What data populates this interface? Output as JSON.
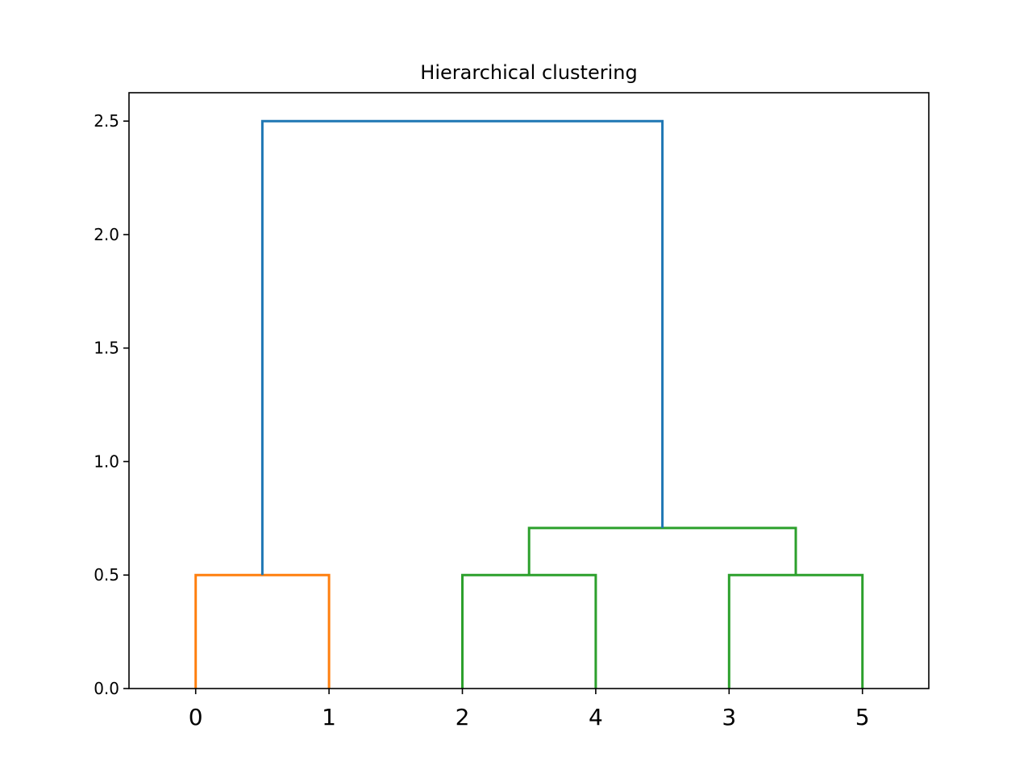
{
  "chart_data": {
    "type": "dendrogram",
    "title": "Hierarchical clustering",
    "xlabel": "",
    "ylabel": "",
    "leaf_order": [
      "0",
      "1",
      "2",
      "4",
      "3",
      "5"
    ],
    "ylim": [
      0,
      2.625
    ],
    "yticks": [
      0.0,
      0.5,
      1.0,
      1.5,
      2.0,
      2.5
    ],
    "ytick_labels": [
      "0.0",
      "0.5",
      "1.0",
      "1.5",
      "2.0",
      "2.5"
    ],
    "links": [
      {
        "left": "0",
        "right": "1",
        "left_height": 0,
        "right_height": 0,
        "height": 0.5,
        "color": "#ff7f0e"
      },
      {
        "left": "2",
        "right": "4",
        "left_height": 0,
        "right_height": 0,
        "height": 0.5,
        "color": "#2ca02c"
      },
      {
        "left": "3",
        "right": "5",
        "left_height": 0,
        "right_height": 0,
        "height": 0.5,
        "color": "#2ca02c"
      },
      {
        "left": "2+4",
        "right": "3+5",
        "left_height": 0.5,
        "right_height": 0.5,
        "height": 0.7071,
        "color": "#2ca02c"
      },
      {
        "left": "0+1",
        "right": "2+4+3+5",
        "left_height": 0.5,
        "right_height": 0.7071,
        "height": 2.5,
        "color": "#1f77b4"
      }
    ],
    "grid": false
  }
}
